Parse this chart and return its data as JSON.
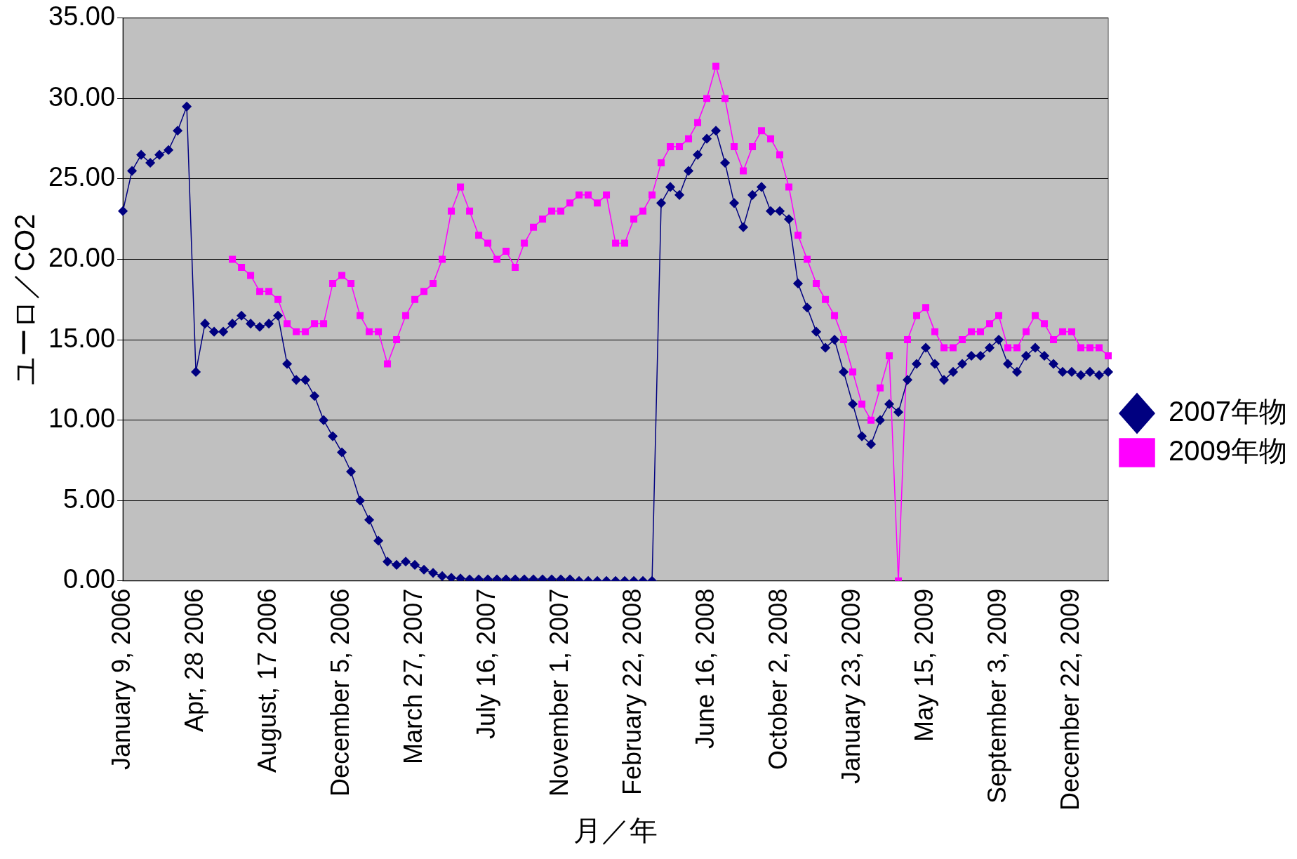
{
  "chart_data": {
    "type": "line",
    "xlabel": "月／年",
    "ylabel": "ユーロ／CO2",
    "categories": [
      "January 9, 2006",
      null,
      null,
      null,
      null,
      null,
      null,
      null,
      "Apr, 28 2006",
      null,
      null,
      null,
      null,
      null,
      null,
      null,
      "August, 17 2006",
      null,
      null,
      null,
      null,
      null,
      null,
      null,
      "December 5, 2006",
      null,
      null,
      null,
      null,
      null,
      null,
      null,
      "March 27, 2007",
      null,
      null,
      null,
      null,
      null,
      null,
      null,
      "July 16, 2007",
      null,
      null,
      null,
      null,
      null,
      null,
      null,
      "November 1, 2007",
      null,
      null,
      null,
      null,
      null,
      null,
      null,
      "February 22, 2008",
      null,
      null,
      null,
      null,
      null,
      null,
      null,
      "June 16, 2008",
      null,
      null,
      null,
      null,
      null,
      null,
      null,
      "October 2, 2008",
      null,
      null,
      null,
      null,
      null,
      null,
      null,
      "January 23, 2009",
      null,
      null,
      null,
      null,
      null,
      null,
      null,
      "May 15, 2009",
      null,
      null,
      null,
      null,
      null,
      null,
      null,
      "September 3, 2009",
      null,
      null,
      null,
      null,
      null,
      null,
      null,
      "December 22, 2009",
      null,
      null,
      null,
      null
    ],
    "series": [
      {
        "name": "2007年物",
        "color": "#000080",
        "marker": "diamond",
        "values": [
          23,
          25.5,
          26.5,
          26,
          26.5,
          26.8,
          28,
          29.5,
          13,
          16,
          15.5,
          15.5,
          16,
          16.5,
          16,
          15.8,
          16,
          16.5,
          13.5,
          12.5,
          12.5,
          11.5,
          10,
          9,
          8,
          6.8,
          5,
          3.8,
          2.5,
          1.2,
          1,
          1.2,
          1,
          0.7,
          0.5,
          0.3,
          0.2,
          0.15,
          0.1,
          0.1,
          0.1,
          0.1,
          0.1,
          0.1,
          0.1,
          0.1,
          0.1,
          0.1,
          0.1,
          0.1,
          0,
          0,
          0,
          0,
          0,
          0,
          0,
          0,
          0,
          23.5,
          24.5,
          24,
          25.5,
          26.5,
          27.5,
          28,
          26,
          23.5,
          22,
          24,
          24.5,
          23,
          23,
          22.5,
          18.5,
          17,
          15.5,
          14.5,
          15,
          13,
          11,
          9,
          8.5,
          10,
          11,
          10.5,
          12.5,
          13.5,
          14.5,
          13.5,
          12.5,
          13,
          13.5,
          14,
          14,
          14.5,
          15,
          13.5,
          13,
          14,
          14.5,
          14,
          13.5,
          13,
          13,
          12.8,
          13,
          12.8,
          13
        ]
      },
      {
        "name": "2009年物",
        "color": "#ff00ff",
        "marker": "square",
        "values": [
          null,
          null,
          null,
          null,
          null,
          null,
          null,
          null,
          null,
          null,
          null,
          null,
          20,
          19.5,
          19,
          18,
          18,
          17.5,
          16,
          15.5,
          15.5,
          16,
          16,
          18.5,
          19,
          18.5,
          16.5,
          15.5,
          15.5,
          13.5,
          15,
          16.5,
          17.5,
          18,
          18.5,
          20,
          23,
          24.5,
          23,
          21.5,
          21,
          20,
          20.5,
          19.5,
          21,
          22,
          22.5,
          23,
          23,
          23.5,
          24,
          24,
          23.5,
          24,
          21,
          21,
          22.5,
          23,
          24,
          26,
          27,
          27,
          27.5,
          28.5,
          30,
          32,
          30,
          27,
          25.5,
          27,
          28,
          27.5,
          26.5,
          24.5,
          21.5,
          20,
          18.5,
          17.5,
          16.5,
          15,
          13,
          11,
          10,
          12,
          14,
          0,
          15,
          16.5,
          17,
          15.5,
          14.5,
          14.5,
          15,
          15.5,
          15.5,
          16,
          16.5,
          14.5,
          14.5,
          15.5,
          16.5,
          16,
          15,
          15.5,
          15.5,
          14.5,
          14.5,
          14.5,
          14
        ]
      }
    ],
    "ylim": [
      0,
      35
    ],
    "yticks": [
      {
        "value": 0,
        "label": "0.00"
      },
      {
        "value": 5,
        "label": "5.00"
      },
      {
        "value": 10,
        "label": "10.00"
      },
      {
        "value": 15,
        "label": "15.00"
      },
      {
        "value": 20,
        "label": "20.00"
      },
      {
        "value": 25,
        "label": "25.00"
      },
      {
        "value": 30,
        "label": "30.00"
      },
      {
        "value": 35,
        "label": "35.00"
      }
    ],
    "grid": "y",
    "legend": "right"
  }
}
